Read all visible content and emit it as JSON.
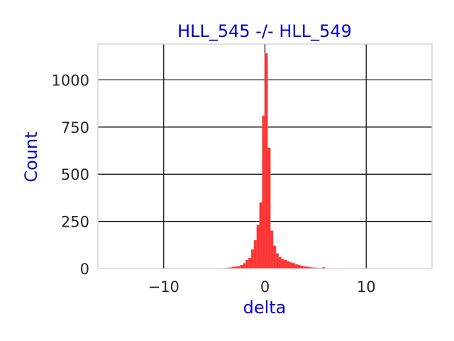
{
  "chart_data": {
    "type": "bar",
    "title": "HLL_545 -/- HLL_549",
    "xlabel": "delta",
    "ylabel": "Count",
    "xlim": [
      -16.5,
      16.5
    ],
    "ylim": [
      0,
      1190
    ],
    "x_ticks": [
      -10,
      0,
      10
    ],
    "x_tick_labels": [
      "−10",
      "0",
      "10"
    ],
    "y_ticks": [
      0,
      250,
      500,
      750,
      1000
    ],
    "y_tick_labels": [
      "0",
      "250",
      "500",
      "750",
      "1000"
    ],
    "grid": true,
    "bar_color": "#ff3333",
    "bin_width": 0.27,
    "bins_start": [
      -4.05,
      -3.78,
      -3.51,
      -3.24,
      -2.97,
      -2.7,
      -2.43,
      -2.16,
      -1.89,
      -1.62,
      -1.35,
      -1.08,
      -0.81,
      -0.54,
      -0.27,
      0.0,
      0.27,
      0.54,
      0.81,
      1.08,
      1.35,
      1.62,
      1.89,
      2.16,
      2.43,
      2.7,
      2.97,
      3.24,
      3.51,
      3.78,
      4.05,
      4.32,
      4.59,
      4.86,
      5.13,
      5.4,
      5.67
    ],
    "counts": [
      2,
      4,
      5,
      8,
      10,
      12,
      18,
      28,
      45,
      55,
      100,
      150,
      230,
      350,
      810,
      1140,
      640,
      200,
      120,
      80,
      60,
      50,
      45,
      38,
      32,
      28,
      22,
      18,
      14,
      11,
      9,
      7,
      5,
      4,
      3,
      2,
      6
    ]
  },
  "colors": {
    "title": "#0000cc",
    "axis_label": "#0000cc",
    "tick_label": "#262626",
    "grid": "#000000",
    "frame": "#cccccc"
  }
}
